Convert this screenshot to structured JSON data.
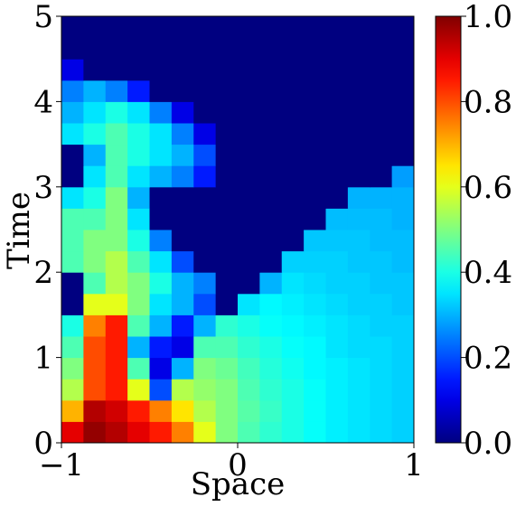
{
  "chart_data": {
    "type": "heatmap",
    "xlabel": "Space",
    "ylabel": "Time",
    "xlim": [
      -1,
      1
    ],
    "ylim": [
      0,
      5
    ],
    "xticks": [
      {
        "value": -1,
        "label": "−1"
      },
      0,
      1
    ],
    "yticks": [
      0,
      1,
      2,
      3,
      4,
      5
    ],
    "clim": [
      0,
      1
    ],
    "cticks": [
      {
        "value": 0,
        "label": "0.0"
      },
      {
        "value": 0.2,
        "label": "0.2"
      },
      {
        "value": 0.4,
        "label": "0.4"
      },
      {
        "value": 0.6,
        "label": "0.6"
      },
      {
        "value": 0.8,
        "label": "0.8"
      },
      {
        "value": 1,
        "label": "1.0"
      }
    ],
    "colormap": "jet",
    "z": [
      [
        0.9,
        0.98,
        0.95,
        0.9,
        0.85,
        0.75,
        0.6,
        0.5,
        0.45,
        0.42,
        0.4,
        0.38,
        0.36,
        0.35,
        0.34,
        0.33
      ],
      [
        0.7,
        0.95,
        0.92,
        0.85,
        0.75,
        0.65,
        0.55,
        0.5,
        0.46,
        0.43,
        0.4,
        0.38,
        0.36,
        0.35,
        0.34,
        0.33
      ],
      [
        0.55,
        0.8,
        0.85,
        0.6,
        0.2,
        0.55,
        0.52,
        0.5,
        0.45,
        0.42,
        0.4,
        0.38,
        0.36,
        0.35,
        0.34,
        0.33
      ],
      [
        0.5,
        0.8,
        0.85,
        0.45,
        0.1,
        0.3,
        0.5,
        0.48,
        0.44,
        0.41,
        0.39,
        0.37,
        0.36,
        0.35,
        0.34,
        0.33
      ],
      [
        0.45,
        0.8,
        0.85,
        0.3,
        0.15,
        0.1,
        0.45,
        0.45,
        0.42,
        0.4,
        0.38,
        0.37,
        0.35,
        0.34,
        0.34,
        0.33
      ],
      [
        0.4,
        0.75,
        0.85,
        0.45,
        0.3,
        0.15,
        0.3,
        0.42,
        0.4,
        0.38,
        0.37,
        0.36,
        0.35,
        0.34,
        0.33,
        0.33
      ],
      [
        0,
        0.6,
        0.6,
        0.5,
        0.35,
        0.3,
        0.2,
        0,
        0.35,
        0.37,
        0.36,
        0.35,
        0.34,
        0.33,
        0.33,
        0.32
      ],
      [
        0,
        0.45,
        0.55,
        0.5,
        0.4,
        0.3,
        0.25,
        0,
        0,
        0.3,
        0.35,
        0.34,
        0.33,
        0.33,
        0.32,
        0.32
      ],
      [
        0.45,
        0.5,
        0.55,
        0.45,
        0.35,
        0.2,
        0,
        0,
        0,
        0,
        0.33,
        0.33,
        0.33,
        0.32,
        0.32,
        0.31
      ],
      [
        0.45,
        0.5,
        0.5,
        0.4,
        0.25,
        0,
        0,
        0,
        0,
        0,
        0,
        0.32,
        0.32,
        0.32,
        0.31,
        0.31
      ],
      [
        0.45,
        0.45,
        0.5,
        0.35,
        0,
        0,
        0,
        0,
        0,
        0,
        0,
        0,
        0.31,
        0.31,
        0.31,
        0.3
      ],
      [
        0.35,
        0.4,
        0.5,
        0.3,
        0,
        0,
        0,
        0,
        0,
        0,
        0,
        0,
        0,
        0.3,
        0.3,
        0.3
      ],
      [
        0,
        0.35,
        0.45,
        0.35,
        0.3,
        0.25,
        0.15,
        0,
        0,
        0,
        0,
        0,
        0,
        0,
        0,
        0.28
      ],
      [
        0,
        0.3,
        0.45,
        0.4,
        0.35,
        0.3,
        0.2,
        0,
        0,
        0,
        0,
        0,
        0,
        0,
        0,
        0
      ],
      [
        0.35,
        0.4,
        0.45,
        0.4,
        0.35,
        0.25,
        0.1,
        0,
        0,
        0,
        0,
        0,
        0,
        0,
        0,
        0
      ],
      [
        0.3,
        0.35,
        0.4,
        0.35,
        0.25,
        0.1,
        0,
        0,
        0,
        0,
        0,
        0,
        0,
        0,
        0,
        0
      ],
      [
        0.25,
        0.3,
        0.25,
        0.15,
        0,
        0,
        0,
        0,
        0,
        0,
        0,
        0,
        0,
        0,
        0,
        0
      ],
      [
        0.1,
        0,
        0,
        0,
        0,
        0,
        0,
        0,
        0,
        0,
        0,
        0,
        0,
        0,
        0,
        0
      ],
      [
        0,
        0,
        0,
        0,
        0,
        0,
        0,
        0,
        0,
        0,
        0,
        0,
        0,
        0,
        0,
        0
      ],
      [
        0,
        0,
        0,
        0,
        0,
        0,
        0,
        0,
        0,
        0,
        0,
        0,
        0,
        0,
        0,
        0
      ]
    ]
  }
}
